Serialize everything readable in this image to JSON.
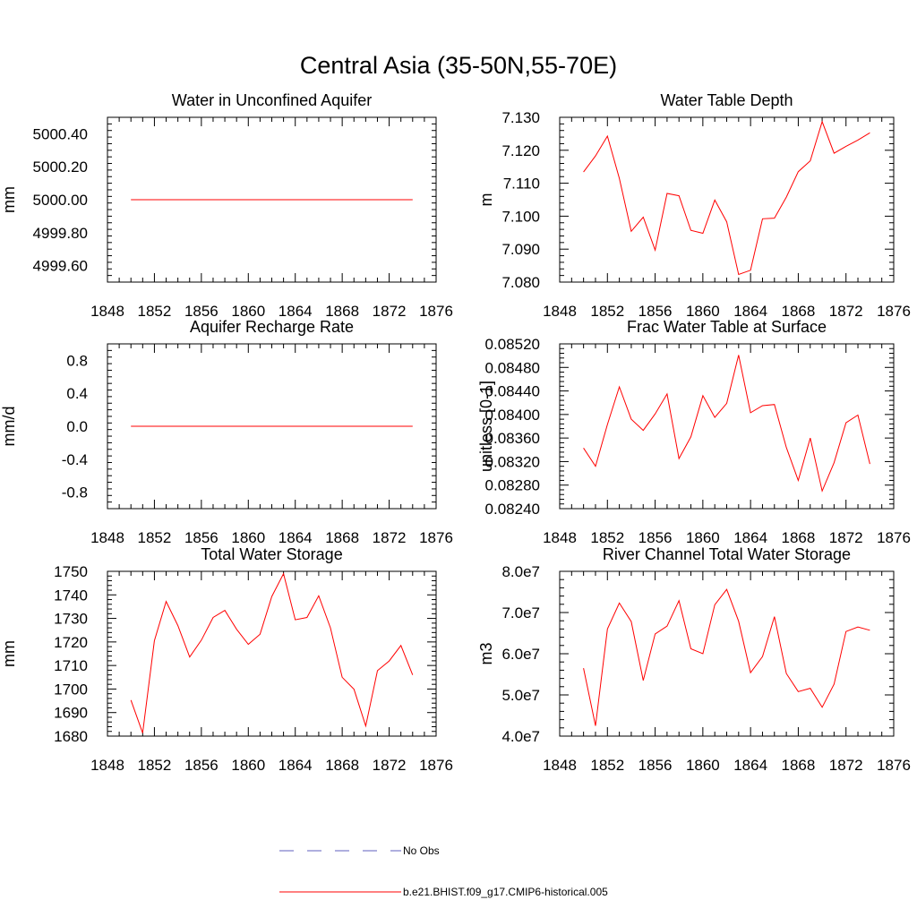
{
  "title": "Central Asia (35-50N,55-70E)",
  "series_color": "#ff0000",
  "obs_color": "#5f5fbf",
  "legend": {
    "obs_label": "No Obs",
    "model_label": "b.e21.BHIST.f09_g17.CMIP6-historical.005"
  },
  "chart_data": [
    {
      "type": "line",
      "title": "Water in Unconfined Aquifer",
      "ylabel": "mm",
      "xlim": [
        1848,
        1876
      ],
      "xticks": [
        1848,
        1852,
        1856,
        1860,
        1864,
        1868,
        1872,
        1876
      ],
      "xtick_labels": [
        "1848",
        "1852",
        "1856",
        "1860",
        "1864",
        "1868",
        "1872",
        "1876"
      ],
      "ylim": [
        4999.5,
        5000.5
      ],
      "yticks": [
        4999.6,
        4999.8,
        5000.0,
        5000.2,
        5000.4
      ],
      "ytick_labels": [
        "4999.60",
        "4999.80",
        "5000.00",
        "5000.20",
        "5000.40"
      ],
      "x": [
        1850,
        1851,
        1852,
        1853,
        1854,
        1855,
        1856,
        1857,
        1858,
        1859,
        1860,
        1861,
        1862,
        1863,
        1864,
        1865,
        1866,
        1867,
        1868,
        1869,
        1870,
        1871,
        1872,
        1873,
        1874
      ],
      "series": [
        {
          "name": "b.e21.BHIST.f09_g17.CMIP6-historical.005",
          "values": [
            5000,
            5000,
            5000,
            5000,
            5000,
            5000,
            5000,
            5000,
            5000,
            5000,
            5000,
            5000,
            5000,
            5000,
            5000,
            5000,
            5000,
            5000,
            5000,
            5000,
            5000,
            5000,
            5000,
            5000,
            5000
          ]
        }
      ]
    },
    {
      "type": "line",
      "title": "Water Table Depth",
      "ylabel": "m",
      "xlim": [
        1848,
        1876
      ],
      "xticks": [
        1848,
        1852,
        1856,
        1860,
        1864,
        1868,
        1872,
        1876
      ],
      "xtick_labels": [
        "1848",
        "1852",
        "1856",
        "1860",
        "1864",
        "1868",
        "1872",
        "1876"
      ],
      "ylim": [
        7.08,
        7.13
      ],
      "yticks": [
        7.08,
        7.09,
        7.1,
        7.11,
        7.12,
        7.13
      ],
      "ytick_labels": [
        "7.080",
        "7.090",
        "7.100",
        "7.110",
        "7.120",
        "7.130"
      ],
      "x": [
        1850,
        1851,
        1852,
        1853,
        1854,
        1855,
        1856,
        1857,
        1858,
        1859,
        1860,
        1861,
        1862,
        1863,
        1864,
        1865,
        1866,
        1867,
        1868,
        1869,
        1870,
        1871,
        1872,
        1873,
        1874
      ],
      "series": [
        {
          "name": "b.e21.BHIST.f09_g17.CMIP6-historical.005",
          "values": [
            7.1134,
            7.1183,
            7.1243,
            7.1115,
            7.0954,
            7.0997,
            7.0897,
            7.1069,
            7.1062,
            7.0957,
            7.0948,
            7.1049,
            7.0983,
            7.0823,
            7.0836,
            7.0992,
            7.0994,
            7.1058,
            7.1135,
            7.1168,
            7.1287,
            7.1191,
            7.1212,
            7.1231,
            7.1253
          ]
        }
      ]
    },
    {
      "type": "line",
      "title": "Aquifer Recharge Rate",
      "ylabel": "mm/d",
      "xlim": [
        1848,
        1876
      ],
      "xticks": [
        1848,
        1852,
        1856,
        1860,
        1864,
        1868,
        1872,
        1876
      ],
      "xtick_labels": [
        "1848",
        "1852",
        "1856",
        "1860",
        "1864",
        "1868",
        "1872",
        "1876"
      ],
      "ylim": [
        -1.0,
        1.0
      ],
      "yticks": [
        -0.8,
        -0.4,
        0.0,
        0.4,
        0.8
      ],
      "ytick_labels": [
        "-0.8",
        "-0.4",
        "0.0",
        "0.4",
        "0.8"
      ],
      "x": [
        1850,
        1851,
        1852,
        1853,
        1854,
        1855,
        1856,
        1857,
        1858,
        1859,
        1860,
        1861,
        1862,
        1863,
        1864,
        1865,
        1866,
        1867,
        1868,
        1869,
        1870,
        1871,
        1872,
        1873,
        1874
      ],
      "series": [
        {
          "name": "b.e21.BHIST.f09_g17.CMIP6-historical.005",
          "values": [
            0,
            0,
            0,
            0,
            0,
            0,
            0,
            0,
            0,
            0,
            0,
            0,
            0,
            0,
            0,
            0,
            0,
            0,
            0,
            0,
            0,
            0,
            0,
            0,
            0
          ]
        }
      ]
    },
    {
      "type": "line",
      "title": "Frac Water Table at Surface",
      "ylabel": "unitless [0-1]",
      "xlim": [
        1848,
        1876
      ],
      "xticks": [
        1848,
        1852,
        1856,
        1860,
        1864,
        1868,
        1872,
        1876
      ],
      "xtick_labels": [
        "1848",
        "1852",
        "1856",
        "1860",
        "1864",
        "1868",
        "1872",
        "1876"
      ],
      "ylim": [
        0.0824,
        0.0852
      ],
      "yticks": [
        0.0824,
        0.0828,
        0.0832,
        0.0836,
        0.084,
        0.0844,
        0.0848,
        0.0852
      ],
      "ytick_labels": [
        "0.08240",
        "0.08280",
        "0.08320",
        "0.08360",
        "0.08400",
        "0.08440",
        "0.08480",
        "0.08520"
      ],
      "x": [
        1850,
        1851,
        1852,
        1853,
        1854,
        1855,
        1856,
        1857,
        1858,
        1859,
        1860,
        1861,
        1862,
        1863,
        1864,
        1865,
        1866,
        1867,
        1868,
        1869,
        1870,
        1871,
        1872,
        1873,
        1874
      ],
      "series": [
        {
          "name": "b.e21.BHIST.f09_g17.CMIP6-historical.005",
          "values": [
            0.08343,
            0.08312,
            0.08383,
            0.08447,
            0.08392,
            0.08373,
            0.08401,
            0.08435,
            0.08325,
            0.08362,
            0.08432,
            0.08395,
            0.08419,
            0.08501,
            0.08403,
            0.08415,
            0.08417,
            0.08344,
            0.08288,
            0.0836,
            0.0827,
            0.08318,
            0.08386,
            0.08399,
            0.08316
          ]
        }
      ]
    },
    {
      "type": "line",
      "title": "Total Water Storage",
      "ylabel": "mm",
      "xlim": [
        1848,
        1876
      ],
      "xticks": [
        1848,
        1852,
        1856,
        1860,
        1864,
        1868,
        1872,
        1876
      ],
      "xtick_labels": [
        "1848",
        "1852",
        "1856",
        "1860",
        "1864",
        "1868",
        "1872",
        "1876"
      ],
      "ylim": [
        1680,
        1750
      ],
      "yticks": [
        1680,
        1690,
        1700,
        1710,
        1720,
        1730,
        1740,
        1750
      ],
      "ytick_labels": [
        "1680",
        "1690",
        "1700",
        "1710",
        "1720",
        "1730",
        "1740",
        "1750"
      ],
      "x": [
        1850,
        1851,
        1852,
        1853,
        1854,
        1855,
        1856,
        1857,
        1858,
        1859,
        1860,
        1861,
        1862,
        1863,
        1864,
        1865,
        1866,
        1867,
        1868,
        1869,
        1870,
        1871,
        1872,
        1873,
        1874
      ],
      "series": [
        {
          "name": "b.e21.BHIST.f09_g17.CMIP6-historical.005",
          "values": [
            1695.3,
            1681.3,
            1720.5,
            1737.2,
            1727.0,
            1713.6,
            1720.8,
            1730.4,
            1733.4,
            1725.4,
            1719.0,
            1723.3,
            1739.3,
            1749.0,
            1729.4,
            1730.4,
            1739.6,
            1726.0,
            1705.0,
            1699.9,
            1684.3,
            1707.8,
            1711.9,
            1718.5,
            1706.0
          ]
        }
      ]
    },
    {
      "type": "line",
      "title": "River Channel Total Water Storage",
      "ylabel": "m3",
      "xlim": [
        1848,
        1876
      ],
      "xticks": [
        1848,
        1852,
        1856,
        1860,
        1864,
        1868,
        1872,
        1876
      ],
      "xtick_labels": [
        "1848",
        "1852",
        "1856",
        "1860",
        "1864",
        "1868",
        "1872",
        "1876"
      ],
      "ylim": [
        40000000,
        80000000
      ],
      "yticks": [
        40000000,
        50000000,
        60000000,
        70000000,
        80000000
      ],
      "ytick_labels": [
        "4.0e7",
        "5.0e7",
        "6.0e7",
        "7.0e7",
        "8.0e7"
      ],
      "x": [
        1850,
        1851,
        1852,
        1853,
        1854,
        1855,
        1856,
        1857,
        1858,
        1859,
        1860,
        1861,
        1862,
        1863,
        1864,
        1865,
        1866,
        1867,
        1868,
        1869,
        1870,
        1871,
        1872,
        1873,
        1874
      ],
      "series": [
        {
          "name": "b.e21.BHIST.f09_g17.CMIP6-historical.005",
          "values": [
            56500000,
            42500000,
            66000000,
            72300000,
            67800000,
            53500000,
            64800000,
            66700000,
            72900000,
            61200000,
            60000000,
            71900000,
            75600000,
            67900000,
            55400000,
            59300000,
            69000000,
            55200000,
            50800000,
            51600000,
            47000000,
            52600000,
            65400000,
            66500000,
            65700000
          ]
        }
      ]
    }
  ]
}
